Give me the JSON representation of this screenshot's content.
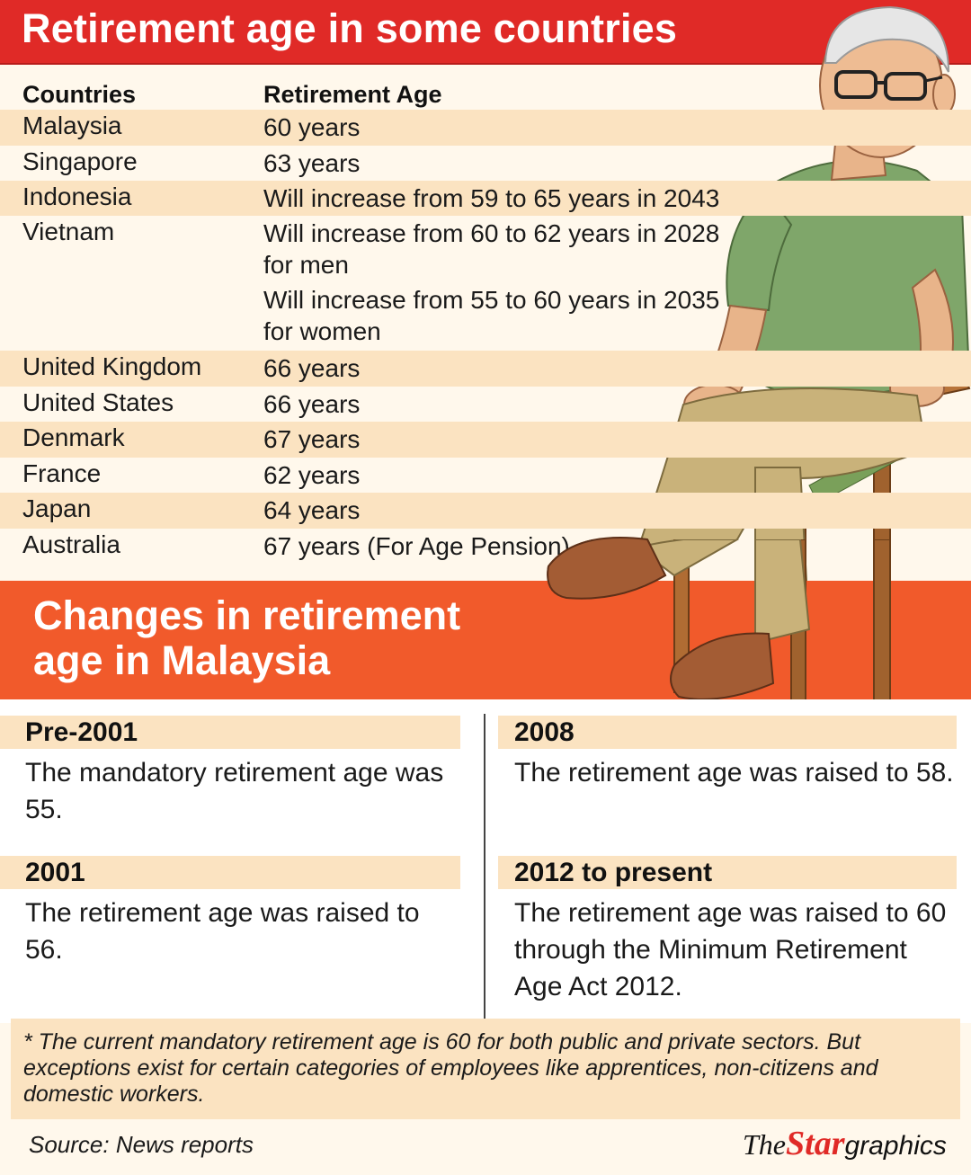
{
  "title": "Retirement age in some countries",
  "table": {
    "headers": [
      "Countries",
      "Retirement Age"
    ],
    "rows": [
      {
        "country": "Malaysia",
        "age": [
          "60 years"
        ]
      },
      {
        "country": "Singapore",
        "age": [
          "63 years"
        ]
      },
      {
        "country": "Indonesia",
        "age": [
          "Will increase from 59 to 65 years in 2043"
        ]
      },
      {
        "country": "Vietnam",
        "age": [
          "Will increase from 60 to 62 years in 2028",
          "for men",
          "Will increase from 55 to 60 years in 2035",
          "for women"
        ]
      },
      {
        "country": "United Kingdom",
        "age": [
          "66 years"
        ]
      },
      {
        "country": "United States",
        "age": [
          "66 years"
        ]
      },
      {
        "country": "Denmark",
        "age": [
          "67 years"
        ]
      },
      {
        "country": "France",
        "age": [
          "62 years"
        ]
      },
      {
        "country": "Japan",
        "age": [
          "64 years"
        ]
      },
      {
        "country": "Australia",
        "age": [
          "67 years (For Age Pension)"
        ]
      }
    ]
  },
  "changes": {
    "heading": "Changes in retirement age in Malaysia",
    "left": [
      {
        "label": "Pre-2001",
        "text": "The mandatory retirement age was 55."
      },
      {
        "label": "2001",
        "text": "The retirement age was raised to 56."
      }
    ],
    "right": [
      {
        "label": "2008",
        "text": "The retirement age was raised to 58."
      },
      {
        "label": "2012 to present",
        "text": "The retirement age was raised to 60 through the Minimum Retirement Age Act 2012."
      }
    ]
  },
  "footnote": "* The current mandatory retirement age is 60 for both public and private sectors. But exceptions exist for certain categories of employees like apprentices, non-citizens and domestic workers.",
  "source": "Source: News reports",
  "logo": {
    "the": "The",
    "star": "Star",
    "graphics": "graphics"
  },
  "colors": {
    "title_red": "#e02a27",
    "orange": "#f15a2b",
    "shade": "#fbe3c1"
  }
}
